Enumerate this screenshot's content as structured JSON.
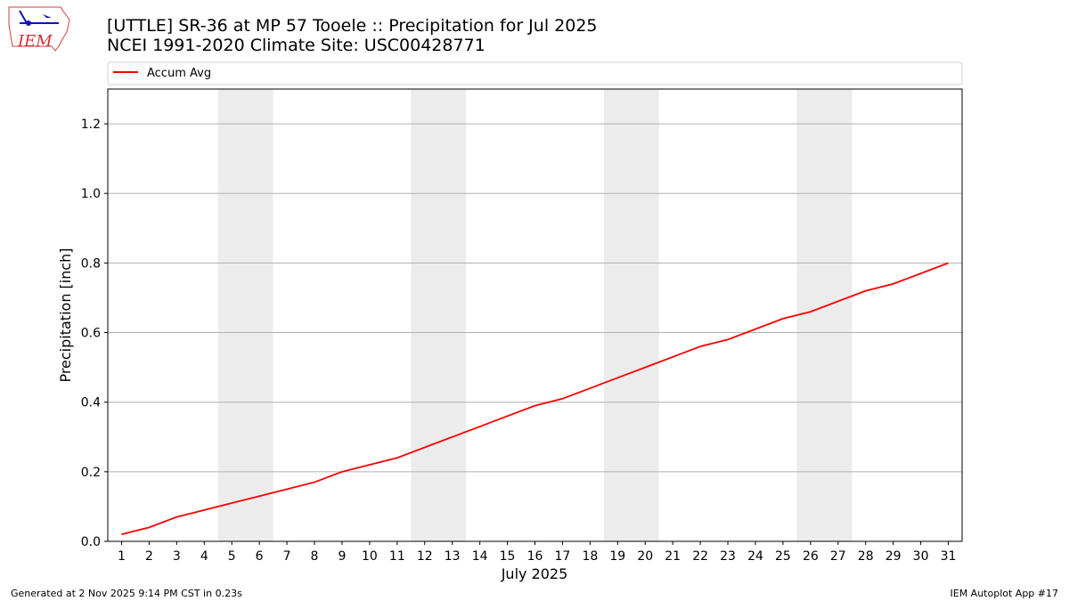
{
  "logo_text": "IEM",
  "footer": {
    "left": "Generated at 2 Nov 2025 9:14 PM CST in 0.23s",
    "right": "IEM Autoplot App #17"
  },
  "chart_data": {
    "type": "line",
    "title": "[UTTLE] SR-36 at MP 57 Tooele  :: Precipitation for Jul 2025",
    "subtitle": "NCEI 1991-2020 Climate Site: USC00428771",
    "x_label": "July 2025",
    "y_label": "Precipitation [inch]",
    "x": [
      1,
      2,
      3,
      4,
      5,
      6,
      7,
      8,
      9,
      10,
      11,
      12,
      13,
      14,
      15,
      16,
      17,
      18,
      19,
      20,
      21,
      22,
      23,
      24,
      25,
      26,
      27,
      28,
      29,
      30,
      31
    ],
    "xlim": [
      0.5,
      31.5
    ],
    "xticks": [
      1,
      2,
      3,
      4,
      5,
      6,
      7,
      8,
      9,
      10,
      11,
      12,
      13,
      14,
      15,
      16,
      17,
      18,
      19,
      20,
      21,
      22,
      23,
      24,
      25,
      26,
      27,
      28,
      29,
      30,
      31
    ],
    "ylim": [
      0,
      1.3
    ],
    "yticks": [
      {
        "value": 0,
        "label": "0.0"
      },
      0.2,
      0.4,
      0.6,
      0.8,
      {
        "value": 1,
        "label": "1.0"
      },
      1.2
    ],
    "grid": true,
    "shaded_spans": [
      [
        4.5,
        6.5
      ],
      [
        11.5,
        13.5
      ],
      [
        18.5,
        20.5
      ],
      [
        25.5,
        27.5
      ]
    ],
    "shade_color": "#ececec",
    "legend_position": "top",
    "series": [
      {
        "name": "Accum Avg",
        "color": "#ff0000",
        "values": [
          0.02,
          0.04,
          0.07,
          0.09,
          0.11,
          0.13,
          0.15,
          0.17,
          0.2,
          0.22,
          0.24,
          0.27,
          0.3,
          0.33,
          0.36,
          0.39,
          0.41,
          0.44,
          0.47,
          0.5,
          0.53,
          0.56,
          0.58,
          0.61,
          0.64,
          0.66,
          0.69,
          0.72,
          0.74,
          0.77,
          0.8
        ]
      }
    ]
  }
}
